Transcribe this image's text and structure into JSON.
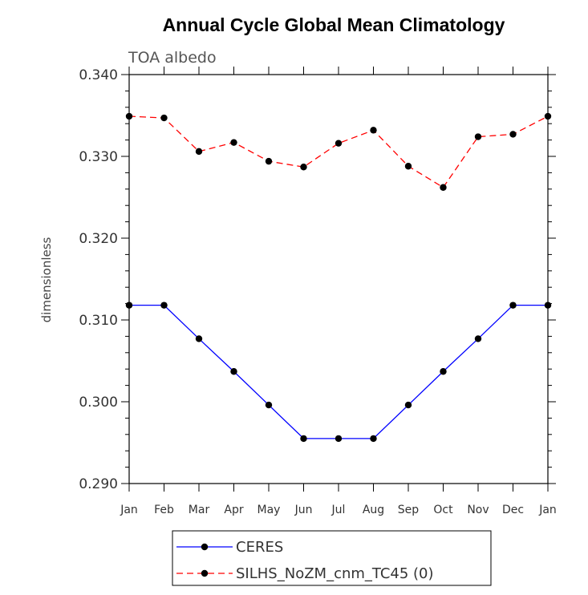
{
  "chart_data": {
    "type": "line",
    "title": "Annual Cycle Global Mean Climatology",
    "subtitle": "TOA albedo",
    "xlabel": "",
    "ylabel": "dimensionless",
    "categories": [
      "Jan",
      "Feb",
      "Mar",
      "Apr",
      "May",
      "Jun",
      "Jul",
      "Aug",
      "Sep",
      "Oct",
      "Nov",
      "Dec",
      "Jan"
    ],
    "ylim": [
      0.29,
      0.34
    ],
    "y_ticks": [
      "0.290",
      "0.300",
      "0.310",
      "0.320",
      "0.330",
      "0.340"
    ],
    "grid": false,
    "legend_position": "bottom",
    "series": [
      {
        "name": "CERES",
        "color": "#0000ff",
        "line_style": "solid",
        "marker": "filled-circle",
        "values": [
          0.3118,
          0.3118,
          0.3077,
          0.3037,
          0.2996,
          0.2955,
          0.2955,
          0.2955,
          0.2996,
          0.3037,
          0.3077,
          0.3118,
          0.3118
        ]
      },
      {
        "name": "SILHS_NoZM_cnm_TC45 (0)",
        "color": "#ff0000",
        "line_style": "dashed",
        "marker": "filled-circle",
        "values": [
          0.3349,
          0.3347,
          0.3306,
          0.3317,
          0.3294,
          0.3287,
          0.3316,
          0.3332,
          0.3288,
          0.3262,
          0.3324,
          0.3327,
          0.3349
        ]
      }
    ]
  }
}
